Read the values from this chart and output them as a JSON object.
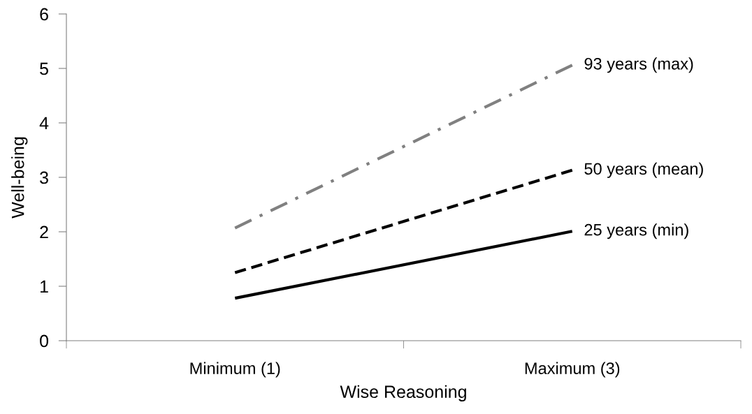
{
  "chart_data": {
    "type": "line",
    "xlabel": "Wise Reasoning",
    "ylabel": "Well-being",
    "categories": [
      "Minimum (1)",
      "Maximum (3)"
    ],
    "series": [
      {
        "name": "93 years (max)",
        "color": "#808080",
        "line_style": "dashdot",
        "values": [
          2.07,
          5.06
        ]
      },
      {
        "name": "50 years (mean)",
        "color": "#000000",
        "line_style": "dashed",
        "values": [
          1.25,
          3.13
        ]
      },
      {
        "name": "25 years (min)",
        "color": "#000000",
        "line_style": "solid",
        "values": [
          0.78,
          2.01
        ]
      }
    ],
    "ylim": [
      0,
      6
    ],
    "yticks": [
      0,
      1,
      2,
      3,
      4,
      5,
      6
    ],
    "grid": false,
    "legend": false,
    "marker": "none"
  }
}
